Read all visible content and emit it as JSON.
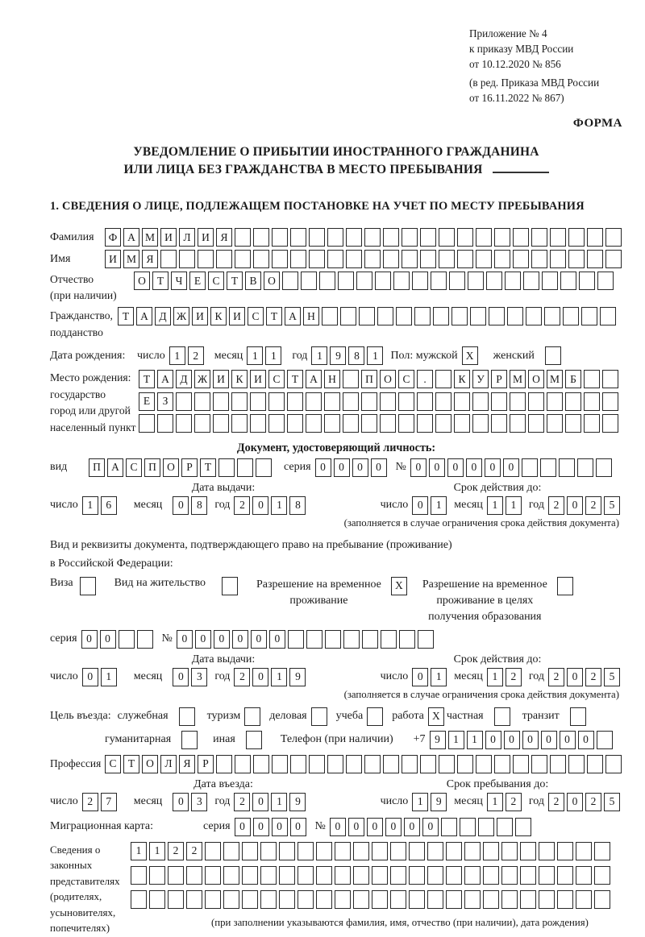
{
  "header": {
    "appendix": [
      "Приложение № 4",
      "к приказу МВД России",
      "от 10.12.2020 № 856"
    ],
    "edition": [
      "(в ред. Приказа МВД России",
      "от 16.11.2022 № 867)"
    ],
    "form_label": "ФОРМА"
  },
  "title": {
    "line1": "УВЕДОМЛЕНИЕ О ПРИБЫТИИ ИНОСТРАННОГО ГРАЖДАНИНА",
    "line2": "ИЛИ ЛИЦА БЕЗ ГРАЖДАНСТВА В МЕСТО ПРЕБЫВАНИЯ"
  },
  "section1": {
    "heading": "1. СВЕДЕНИЯ О ЛИЦЕ, ПОДЛЕЖАЩЕМ ПОСТАНОВКЕ НА УЧЕТ ПО МЕСТУ ПРЕБЫВАНИЯ",
    "surname_label": "Фамилия",
    "surname": {
      "v": "ФАМИЛИЯ",
      "n": 28
    },
    "firstname_label": "Имя",
    "firstname": {
      "v": "ИМЯ",
      "n": 28
    },
    "patronymic_label": "Отчество",
    "patronymic_note": "(при наличии)",
    "patronymic": {
      "v": "ОТЧЕСТВО",
      "n": 26
    },
    "citizenship_label1": "Гражданство,",
    "citizenship_label2": "подданство",
    "citizenship": {
      "v": "ТАДЖИКИСТАН",
      "n": 27
    },
    "birthdate_label": "Дата рождения:",
    "day_label": "число",
    "month_label": "месяц",
    "year_label": "год",
    "birth_day": {
      "v": "12",
      "n": 2
    },
    "birth_month": {
      "v": "11",
      "n": 2
    },
    "birth_year": {
      "v": "1981",
      "n": 4
    },
    "sex_male_label": "Пол: мужской",
    "sex_male": {
      "v": "X",
      "n": 1
    },
    "sex_female_label": "женский",
    "sex_female": {
      "v": "",
      "n": 1
    },
    "birthplace_label1": "Место рождения:",
    "birthplace_label2": "государство",
    "birthplace_label3": "город или другой",
    "birthplace_label4": "населенный пункт",
    "birthplace_row1": {
      "v": "ТАДЖИКИСТАН ПОС. КУРМОМБ",
      "n": 26
    },
    "birthplace_row2": {
      "v": "ЕЗ",
      "n": 26
    },
    "birthplace_row3": {
      "v": "",
      "n": 26
    }
  },
  "identity_doc": {
    "heading": "Документ, удостоверяющий личность:",
    "type_label": "вид",
    "type": {
      "v": "ПАСПОРТ",
      "n": 10
    },
    "series_label": "серия",
    "series": {
      "v": "0000",
      "n": 4
    },
    "number_label": "№",
    "number": {
      "v": "000000",
      "n": 11
    },
    "issue_label": "Дата выдачи:",
    "issue_day": {
      "v": "16",
      "n": 2
    },
    "issue_month": {
      "v": "08",
      "n": 2
    },
    "issue_year": {
      "v": "2018",
      "n": 4
    },
    "valid_label": "Срок действия до:",
    "valid_day": {
      "v": "01",
      "n": 2
    },
    "valid_month": {
      "v": "11",
      "n": 2
    },
    "valid_year": {
      "v": "2025",
      "n": 4
    },
    "valid_note": "(заполняется в случае ограничения срока действия документа)"
  },
  "stay_doc": {
    "intro1": "Вид и реквизиты документа, подтверждающего право на пребывание (проживание)",
    "intro2": "в Российской Федерации:",
    "visa_label": "Виза",
    "visa": {
      "v": "",
      "n": 1
    },
    "residence_label": "Вид на жительство",
    "residence": {
      "v": "",
      "n": 1
    },
    "temp_label1": "Разрешение на временное",
    "temp_label2": "проживание",
    "temp": {
      "v": "X",
      "n": 1
    },
    "temp_edu_label1": "Разрешение на временное",
    "temp_edu_label2": "проживание в целях",
    "temp_edu_label3": "получения образования",
    "temp_edu": {
      "v": "",
      "n": 1
    },
    "series_label": "серия",
    "series": {
      "v": "00",
      "n": 4
    },
    "number_label": "№",
    "number": {
      "v": "000000",
      "n": 14
    },
    "issue_label": "Дата выдачи:",
    "issue_day": {
      "v": "01",
      "n": 2
    },
    "issue_month": {
      "v": "03",
      "n": 2
    },
    "issue_year": {
      "v": "2019",
      "n": 4
    },
    "valid_label": "Срок действия до:",
    "valid_day": {
      "v": "01",
      "n": 2
    },
    "valid_month": {
      "v": "12",
      "n": 2
    },
    "valid_year": {
      "v": "2025",
      "n": 4
    },
    "valid_note": "(заполняется в случае ограничения срока действия документа)"
  },
  "visit": {
    "purpose_label": "Цель въезда:",
    "official_label": "служебная",
    "official": {
      "v": "",
      "n": 1
    },
    "tourism_label": "туризм",
    "tourism": {
      "v": "",
      "n": 1
    },
    "business_label": "деловая",
    "business": {
      "v": "",
      "n": 1
    },
    "study_label": "учеба",
    "study": {
      "v": "",
      "n": 1
    },
    "work_label": "работа",
    "work": {
      "v": "X",
      "n": 1
    },
    "private_label": "частная",
    "private": {
      "v": "",
      "n": 1
    },
    "transit_label": "транзит",
    "transit": {
      "v": "",
      "n": 1
    },
    "humanitarian_label": "гуманитарная",
    "humanitarian": {
      "v": "",
      "n": 1
    },
    "other_label": "иная",
    "other": {
      "v": "",
      "n": 1
    },
    "phone_label": "Телефон (при наличии)",
    "phone_prefix": "+7",
    "phone": {
      "v": "911000000",
      "n": 10
    },
    "profession_label": "Профессия",
    "profession": {
      "v": "СТОЛЯР",
      "n": 28
    },
    "entry_label": "Дата въезда:",
    "entry_day": {
      "v": "27",
      "n": 2
    },
    "entry_month": {
      "v": "03",
      "n": 2
    },
    "entry_year": {
      "v": "2019",
      "n": 4
    },
    "stay_label": "Срок пребывания до:",
    "stay_day": {
      "v": "19",
      "n": 2
    },
    "stay_month": {
      "v": "12",
      "n": 2
    },
    "stay_year": {
      "v": "2025",
      "n": 4
    }
  },
  "migration_card": {
    "label": "Миграционная карта:",
    "series_label": "серия",
    "series": {
      "v": "0000",
      "n": 4
    },
    "number_label": "№",
    "number": {
      "v": "000000",
      "n": 11
    }
  },
  "guardians": {
    "label_lines": [
      "Сведения о",
      "законных",
      "представителях",
      "(родителях,",
      "усыновителях,",
      "попечителях)"
    ],
    "row1": {
      "v": "1122",
      "n": 26
    },
    "row2": {
      "v": "",
      "n": 26
    },
    "row3": {
      "v": "",
      "n": 26
    },
    "note": "(при заполнении указываются фамилия, имя, отчество (при наличии), дата рождения)"
  }
}
